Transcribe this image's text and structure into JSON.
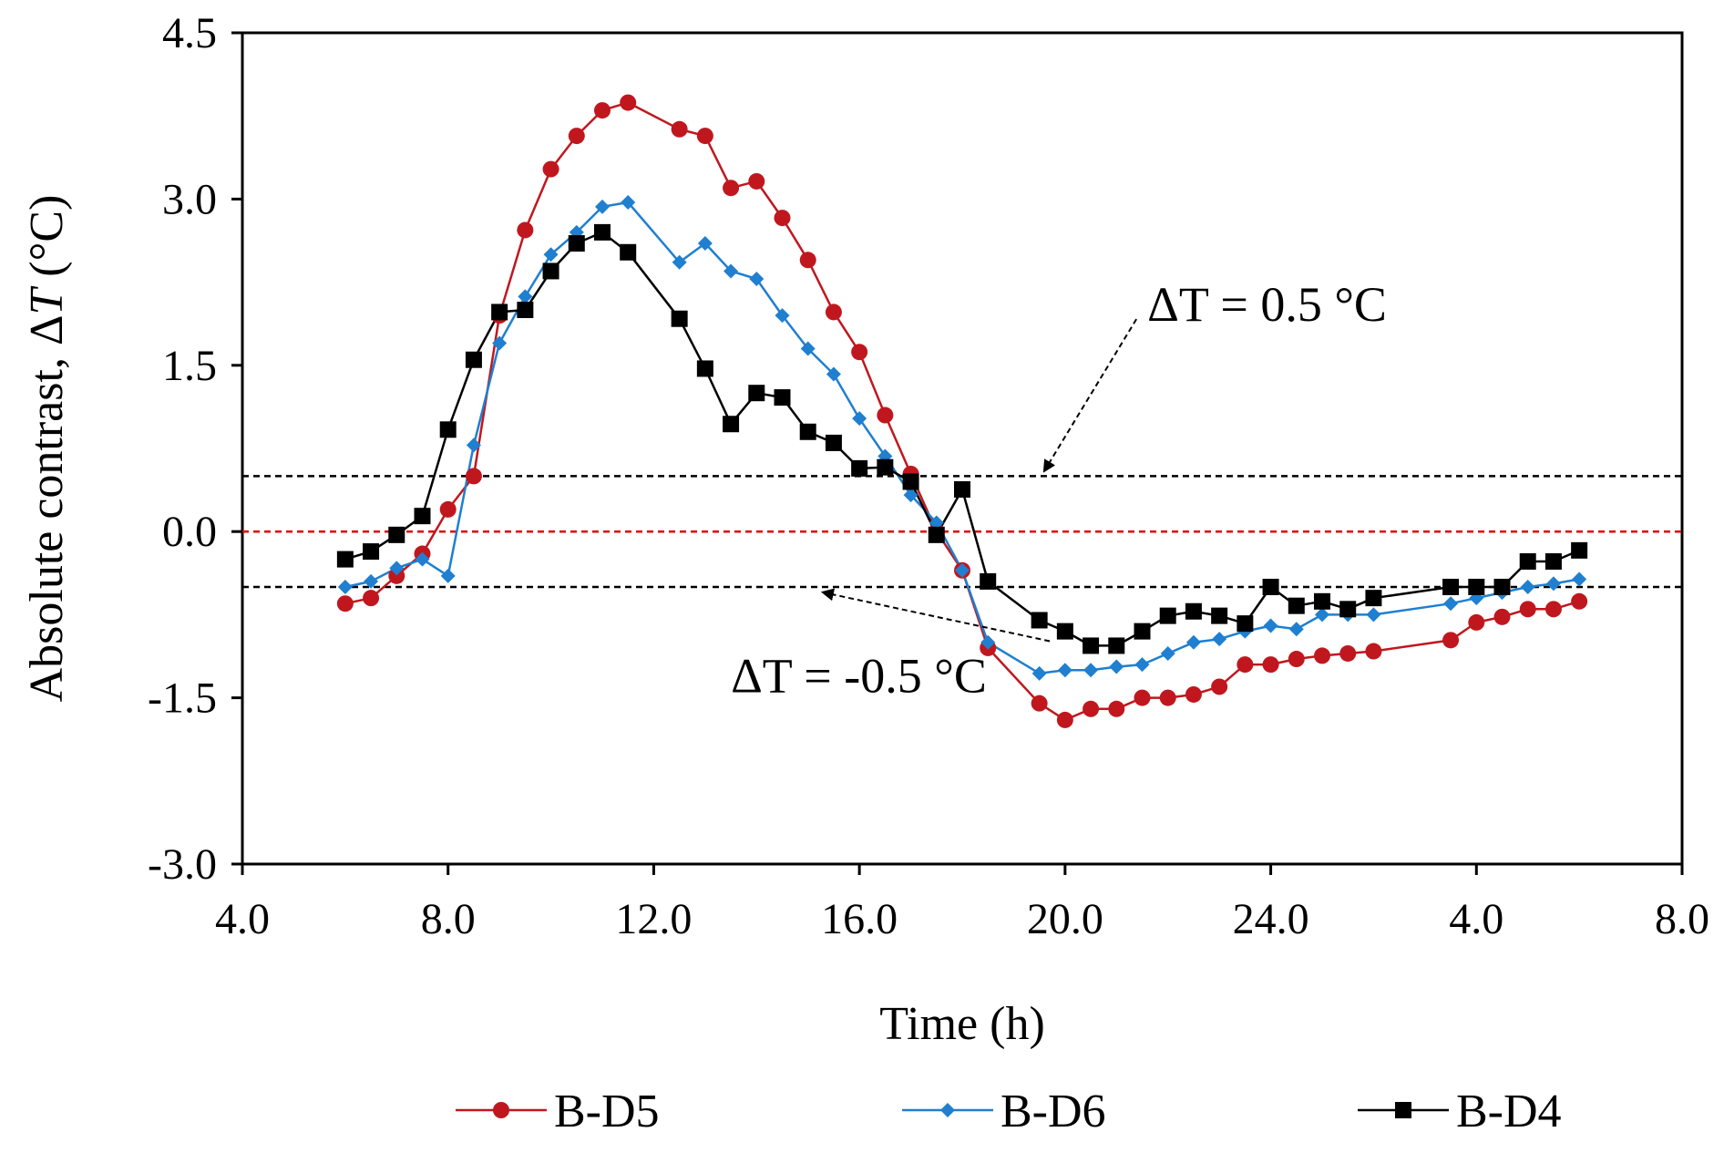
{
  "chart_data": {
    "type": "line",
    "title": "",
    "xlabel": "Time  (h)",
    "ylabel_prefix": "Absolute contrast, Δ",
    "ylabel_var": "T",
    "ylabel_suffix": " (°C)",
    "ylim": [
      -3.0,
      4.5
    ],
    "y_ticks": [
      "4.5",
      "3.0",
      "1.5",
      "0.0",
      "-1.5",
      "-3.0"
    ],
    "y_tick_values": [
      4.5,
      3.0,
      1.5,
      0.0,
      -1.5,
      -3.0
    ],
    "xlim": [
      4.0,
      32.0
    ],
    "x_ticks": [
      "4.0",
      "8.0",
      "12.0",
      "16.0",
      "20.0",
      "24.0",
      "4.0",
      "8.0"
    ],
    "x_tick_values": [
      4,
      8,
      12,
      16,
      20,
      24,
      28,
      32
    ],
    "reference_lines": [
      {
        "name": "upper-threshold",
        "y": 0.5,
        "color": "#000000"
      },
      {
        "name": "zero-line",
        "y": 0.0,
        "color": "#e00000"
      },
      {
        "name": "lower-threshold",
        "y": -0.5,
        "color": "#000000"
      }
    ],
    "annotations": [
      {
        "name": "upper",
        "text": "ΔT = 0.5 °C",
        "x": 21.6,
        "y": 1.9,
        "target_x": 19.6,
        "target_y": 0.5
      },
      {
        "name": "lower",
        "text": "ΔT = -0.5 °C",
        "x": 13.5,
        "y": -1.45,
        "target_x": 15.3,
        "target_y": -0.5
      }
    ],
    "legend_position": "bottom",
    "series": [
      {
        "name": "B-D5",
        "color": "#c0171f",
        "marker": "circle",
        "x": [
          6.0,
          6.5,
          7.0,
          7.5,
          8.0,
          8.5,
          9.0,
          9.5,
          10.0,
          10.5,
          11.0,
          11.5,
          12.5,
          13.0,
          13.5,
          14.0,
          14.5,
          15.0,
          15.5,
          16.0,
          16.5,
          17.0,
          17.5,
          18.0,
          18.5,
          19.5,
          20.0,
          20.5,
          21.0,
          21.5,
          22.0,
          22.5,
          23.0,
          23.5,
          24.0,
          24.5,
          25.0,
          25.5,
          26.0,
          27.5,
          28.0,
          28.5,
          29.0,
          29.5,
          30.0
        ],
        "y": [
          -0.65,
          -0.6,
          -0.4,
          -0.2,
          0.2,
          0.5,
          1.95,
          2.72,
          3.27,
          3.57,
          3.8,
          3.87,
          3.63,
          3.57,
          3.1,
          3.16,
          2.83,
          2.45,
          1.98,
          1.62,
          1.05,
          0.52,
          0.0,
          -0.35,
          -1.05,
          -1.55,
          -1.7,
          -1.6,
          -1.6,
          -1.5,
          -1.5,
          -1.47,
          -1.4,
          -1.2,
          -1.2,
          -1.15,
          -1.12,
          -1.1,
          -1.08,
          -0.98,
          -0.82,
          -0.77,
          -0.7,
          -0.7,
          -0.63
        ]
      },
      {
        "name": "B-D6",
        "color": "#1f7fd0",
        "marker": "diamond",
        "x": [
          6.0,
          6.5,
          7.0,
          7.5,
          8.0,
          8.5,
          9.0,
          9.5,
          10.0,
          10.5,
          11.0,
          11.5,
          12.5,
          13.0,
          13.5,
          14.0,
          14.5,
          15.0,
          15.5,
          16.0,
          16.5,
          17.0,
          17.5,
          18.0,
          18.5,
          19.5,
          20.0,
          20.5,
          21.0,
          21.5,
          22.0,
          22.5,
          23.0,
          23.5,
          24.0,
          24.5,
          25.0,
          25.5,
          26.0,
          27.5,
          28.0,
          28.5,
          29.0,
          29.5,
          30.0
        ],
        "y": [
          -0.5,
          -0.45,
          -0.33,
          -0.25,
          -0.4,
          0.78,
          1.7,
          2.12,
          2.5,
          2.7,
          2.93,
          2.97,
          2.43,
          2.6,
          2.35,
          2.28,
          1.95,
          1.65,
          1.42,
          1.02,
          0.68,
          0.33,
          0.08,
          -0.35,
          -1.0,
          -1.28,
          -1.25,
          -1.25,
          -1.22,
          -1.2,
          -1.1,
          -1.0,
          -0.97,
          -0.9,
          -0.85,
          -0.88,
          -0.75,
          -0.75,
          -0.75,
          -0.65,
          -0.6,
          -0.55,
          -0.5,
          -0.47,
          -0.43
        ]
      },
      {
        "name": "B-D4",
        "color": "#000000",
        "marker": "square",
        "x": [
          6.0,
          6.5,
          7.0,
          7.5,
          8.0,
          8.5,
          9.0,
          9.5,
          10.0,
          10.5,
          11.0,
          11.5,
          12.5,
          13.0,
          13.5,
          14.0,
          14.5,
          15.0,
          15.5,
          16.0,
          16.5,
          17.0,
          17.5,
          18.0,
          18.5,
          19.5,
          20.0,
          20.5,
          21.0,
          21.5,
          22.0,
          22.5,
          23.0,
          23.5,
          24.0,
          24.5,
          25.0,
          25.5,
          26.0,
          27.5,
          28.0,
          28.5,
          29.0,
          29.5,
          30.0
        ],
        "y": [
          -0.25,
          -0.18,
          -0.03,
          0.14,
          0.92,
          1.55,
          1.98,
          2.0,
          2.35,
          2.6,
          2.7,
          2.52,
          1.92,
          1.47,
          0.97,
          1.25,
          1.21,
          0.9,
          0.8,
          0.57,
          0.58,
          0.45,
          -0.03,
          0.38,
          -0.45,
          -0.8,
          -0.9,
          -1.03,
          -1.03,
          -0.9,
          -0.76,
          -0.72,
          -0.76,
          -0.83,
          -0.5,
          -0.67,
          -0.63,
          -0.7,
          -0.6,
          -0.5,
          -0.5,
          -0.5,
          -0.27,
          -0.27,
          -0.17
        ]
      }
    ]
  }
}
